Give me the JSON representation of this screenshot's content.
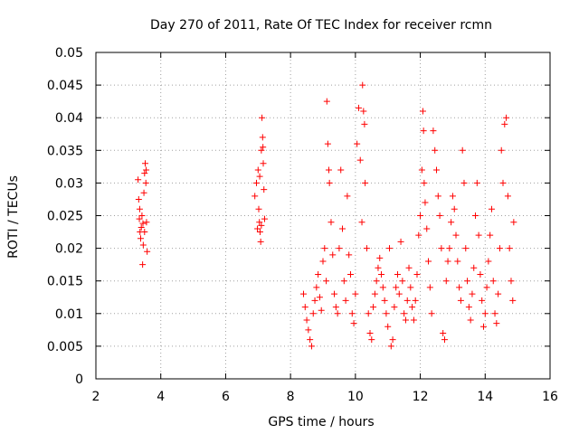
{
  "chart_data": {
    "type": "scatter",
    "title": "Day 270 of 2011, Rate Of TEC Index for receiver rcmn",
    "xlabel": "GPS time / hours",
    "ylabel": "ROTI / TECUs",
    "xlim": [
      2,
      16
    ],
    "ylim": [
      0,
      0.05
    ],
    "x_ticks": [
      2,
      4,
      6,
      8,
      10,
      12,
      14,
      16
    ],
    "x_tick_labels": [
      "2",
      "4",
      "6",
      "8",
      "10",
      "12",
      "14",
      "16"
    ],
    "y_ticks": [
      0,
      0.005,
      0.01,
      0.015,
      0.02,
      0.025,
      0.03,
      0.035,
      0.04,
      0.045,
      0.05
    ],
    "y_tick_labels": [
      "0",
      "0.005",
      "0.01",
      "0.015",
      "0.02",
      "0.025",
      "0.03",
      "0.035",
      "0.04",
      "0.045",
      "0.05"
    ],
    "grid": true,
    "marker": "+",
    "color": "#ff0000",
    "series": [
      {
        "name": "ROTI",
        "points": [
          [
            3.3,
            0.0305
          ],
          [
            3.32,
            0.0275
          ],
          [
            3.34,
            0.0245
          ],
          [
            3.36,
            0.0225
          ],
          [
            3.38,
            0.0215
          ],
          [
            3.4,
            0.0232
          ],
          [
            3.42,
            0.025
          ],
          [
            3.44,
            0.0175
          ],
          [
            3.46,
            0.0205
          ],
          [
            3.48,
            0.0285
          ],
          [
            3.5,
            0.0315
          ],
          [
            3.52,
            0.033
          ],
          [
            3.54,
            0.03
          ],
          [
            3.56,
            0.024
          ],
          [
            3.58,
            0.0195
          ],
          [
            3.35,
            0.026
          ],
          [
            3.45,
            0.0238
          ],
          [
            3.5,
            0.0225
          ],
          [
            3.55,
            0.032
          ],
          [
            6.9,
            0.028
          ],
          [
            6.95,
            0.03
          ],
          [
            7.0,
            0.032
          ],
          [
            7.02,
            0.026
          ],
          [
            7.04,
            0.024
          ],
          [
            7.06,
            0.0225
          ],
          [
            7.08,
            0.021
          ],
          [
            7.1,
            0.035
          ],
          [
            7.12,
            0.04
          ],
          [
            7.14,
            0.037
          ],
          [
            7.16,
            0.033
          ],
          [
            7.18,
            0.029
          ],
          [
            7.2,
            0.0245
          ],
          [
            7.05,
            0.031
          ],
          [
            6.98,
            0.023
          ],
          [
            7.15,
            0.0355
          ],
          [
            7.1,
            0.0235
          ],
          [
            8.4,
            0.013
          ],
          [
            8.45,
            0.011
          ],
          [
            8.5,
            0.009
          ],
          [
            8.55,
            0.0075
          ],
          [
            8.6,
            0.006
          ],
          [
            8.65,
            0.005
          ],
          [
            8.7,
            0.01
          ],
          [
            8.75,
            0.012
          ],
          [
            8.8,
            0.014
          ],
          [
            8.85,
            0.016
          ],
          [
            8.9,
            0.0125
          ],
          [
            8.95,
            0.0105
          ],
          [
            9.0,
            0.018
          ],
          [
            9.05,
            0.02
          ],
          [
            9.1,
            0.015
          ],
          [
            9.12,
            0.0425
          ],
          [
            9.15,
            0.036
          ],
          [
            9.18,
            0.032
          ],
          [
            9.2,
            0.03
          ],
          [
            9.25,
            0.024
          ],
          [
            9.3,
            0.019
          ],
          [
            9.35,
            0.013
          ],
          [
            9.4,
            0.011
          ],
          [
            9.45,
            0.01
          ],
          [
            9.5,
            0.02
          ],
          [
            9.55,
            0.032
          ],
          [
            9.6,
            0.023
          ],
          [
            9.65,
            0.015
          ],
          [
            9.7,
            0.012
          ],
          [
            9.75,
            0.028
          ],
          [
            9.8,
            0.019
          ],
          [
            9.85,
            0.016
          ],
          [
            9.9,
            0.01
          ],
          [
            9.95,
            0.0085
          ],
          [
            10.0,
            0.013
          ],
          [
            10.05,
            0.036
          ],
          [
            10.1,
            0.0415
          ],
          [
            10.15,
            0.0335
          ],
          [
            10.2,
            0.024
          ],
          [
            10.22,
            0.045
          ],
          [
            10.25,
            0.041
          ],
          [
            10.28,
            0.039
          ],
          [
            10.3,
            0.03
          ],
          [
            10.35,
            0.02
          ],
          [
            10.4,
            0.01
          ],
          [
            10.45,
            0.007
          ],
          [
            10.5,
            0.006
          ],
          [
            10.55,
            0.011
          ],
          [
            10.6,
            0.013
          ],
          [
            10.65,
            0.015
          ],
          [
            10.7,
            0.017
          ],
          [
            10.75,
            0.0185
          ],
          [
            10.8,
            0.016
          ],
          [
            10.85,
            0.014
          ],
          [
            10.9,
            0.012
          ],
          [
            10.95,
            0.01
          ],
          [
            11.0,
            0.008
          ],
          [
            11.05,
            0.02
          ],
          [
            11.1,
            0.005
          ],
          [
            11.15,
            0.006
          ],
          [
            11.2,
            0.011
          ],
          [
            11.25,
            0.014
          ],
          [
            11.3,
            0.016
          ],
          [
            11.35,
            0.013
          ],
          [
            11.4,
            0.021
          ],
          [
            11.45,
            0.015
          ],
          [
            11.5,
            0.01
          ],
          [
            11.55,
            0.009
          ],
          [
            11.6,
            0.012
          ],
          [
            11.65,
            0.017
          ],
          [
            11.7,
            0.014
          ],
          [
            11.75,
            0.011
          ],
          [
            11.8,
            0.009
          ],
          [
            11.85,
            0.012
          ],
          [
            11.9,
            0.016
          ],
          [
            11.95,
            0.022
          ],
          [
            12.0,
            0.025
          ],
          [
            12.05,
            0.032
          ],
          [
            12.08,
            0.041
          ],
          [
            12.1,
            0.038
          ],
          [
            12.12,
            0.03
          ],
          [
            12.15,
            0.027
          ],
          [
            12.2,
            0.023
          ],
          [
            12.25,
            0.018
          ],
          [
            12.3,
            0.014
          ],
          [
            12.35,
            0.01
          ],
          [
            12.4,
            0.038
          ],
          [
            12.45,
            0.035
          ],
          [
            12.5,
            0.032
          ],
          [
            12.55,
            0.028
          ],
          [
            12.6,
            0.025
          ],
          [
            12.65,
            0.02
          ],
          [
            12.7,
            0.007
          ],
          [
            12.75,
            0.006
          ],
          [
            12.8,
            0.015
          ],
          [
            12.85,
            0.018
          ],
          [
            12.9,
            0.02
          ],
          [
            12.95,
            0.024
          ],
          [
            13.0,
            0.028
          ],
          [
            13.05,
            0.026
          ],
          [
            13.1,
            0.022
          ],
          [
            13.15,
            0.018
          ],
          [
            13.2,
            0.014
          ],
          [
            13.25,
            0.012
          ],
          [
            13.3,
            0.035
          ],
          [
            13.35,
            0.03
          ],
          [
            13.4,
            0.02
          ],
          [
            13.45,
            0.015
          ],
          [
            13.5,
            0.011
          ],
          [
            13.55,
            0.009
          ],
          [
            13.6,
            0.013
          ],
          [
            13.65,
            0.017
          ],
          [
            13.7,
            0.025
          ],
          [
            13.75,
            0.03
          ],
          [
            13.8,
            0.022
          ],
          [
            13.85,
            0.016
          ],
          [
            13.9,
            0.012
          ],
          [
            13.95,
            0.008
          ],
          [
            14.0,
            0.01
          ],
          [
            14.05,
            0.014
          ],
          [
            14.1,
            0.018
          ],
          [
            14.15,
            0.022
          ],
          [
            14.2,
            0.026
          ],
          [
            14.25,
            0.015
          ],
          [
            14.3,
            0.01
          ],
          [
            14.35,
            0.0085
          ],
          [
            14.4,
            0.013
          ],
          [
            14.45,
            0.02
          ],
          [
            14.5,
            0.035
          ],
          [
            14.55,
            0.03
          ],
          [
            14.6,
            0.039
          ],
          [
            14.65,
            0.04
          ],
          [
            14.7,
            0.028
          ],
          [
            14.75,
            0.02
          ],
          [
            14.8,
            0.015
          ],
          [
            14.85,
            0.012
          ],
          [
            14.88,
            0.024
          ]
        ]
      }
    ]
  }
}
